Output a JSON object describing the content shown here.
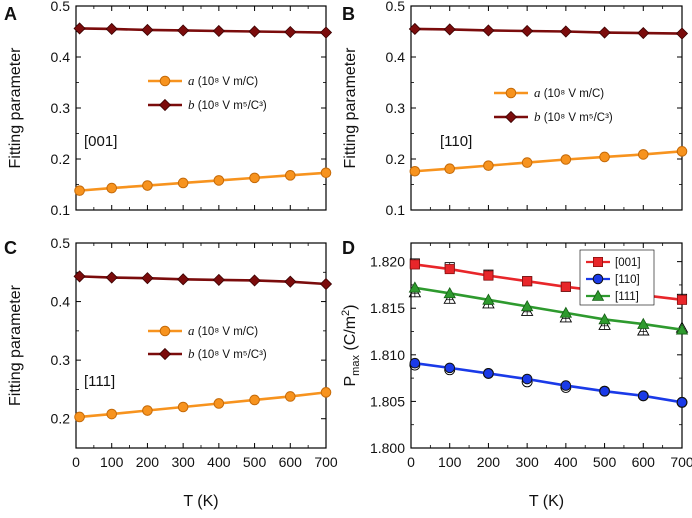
{
  "chart_data": [
    {
      "type": "line",
      "panel_label": "A",
      "ylabel": "Fitting parameter",
      "xlabel": "",
      "xlim": [
        0,
        700
      ],
      "ylim": [
        0.1,
        0.5
      ],
      "xticks": [
        0,
        100,
        200,
        300,
        400,
        500,
        600,
        700
      ],
      "yticks": [
        0.1,
        0.2,
        0.3,
        0.4,
        0.5
      ],
      "show_xticklabels": false,
      "annotation": "[001]",
      "x": [
        10,
        100,
        200,
        300,
        400,
        500,
        600,
        700
      ],
      "series": [
        {
          "name": "a",
          "units": "(10⁸ V m/C)",
          "color": "#f7931e",
          "marker": "circle",
          "values": [
            0.138,
            0.143,
            0.148,
            0.153,
            0.158,
            0.163,
            0.168,
            0.173
          ]
        },
        {
          "name": "b",
          "units": "(10⁸ V m⁵/C³)",
          "color": "#7b0c0c",
          "marker": "diamond",
          "values": [
            0.456,
            0.455,
            0.453,
            0.452,
            0.451,
            0.45,
            0.449,
            0.448
          ]
        }
      ]
    },
    {
      "type": "line",
      "panel_label": "B",
      "ylabel": "Fitting parameter",
      "xlabel": "",
      "xlim": [
        0,
        700
      ],
      "ylim": [
        0.1,
        0.5
      ],
      "xticks": [
        0,
        100,
        200,
        300,
        400,
        500,
        600,
        700
      ],
      "yticks": [
        0.1,
        0.2,
        0.3,
        0.4,
        0.5
      ],
      "show_xticklabels": false,
      "annotation": "[110]",
      "x": [
        10,
        100,
        200,
        300,
        400,
        500,
        600,
        700
      ],
      "series": [
        {
          "name": "a",
          "units": "(10⁸ V m/C)",
          "color": "#f7931e",
          "marker": "circle",
          "values": [
            0.176,
            0.181,
            0.187,
            0.193,
            0.199,
            0.204,
            0.209,
            0.215
          ]
        },
        {
          "name": "b",
          "units": "(10⁸ V m⁵/C³)",
          "color": "#7b0c0c",
          "marker": "diamond",
          "values": [
            0.455,
            0.454,
            0.452,
            0.451,
            0.45,
            0.448,
            0.447,
            0.446
          ]
        }
      ]
    },
    {
      "type": "line",
      "panel_label": "C",
      "ylabel": "Fitting parameter",
      "xlabel": "T (K)",
      "xlim": [
        0,
        700
      ],
      "ylim": [
        0.15,
        0.5
      ],
      "xticks": [
        0,
        100,
        200,
        300,
        400,
        500,
        600,
        700
      ],
      "yticks": [
        0.2,
        0.3,
        0.4,
        0.5
      ],
      "show_xticklabels": true,
      "annotation": "[111]",
      "x": [
        10,
        100,
        200,
        300,
        400,
        500,
        600,
        700
      ],
      "series": [
        {
          "name": "a",
          "units": "(10⁸ V m/C)",
          "color": "#f7931e",
          "marker": "circle",
          "values": [
            0.203,
            0.208,
            0.214,
            0.22,
            0.226,
            0.232,
            0.238,
            0.245
          ]
        },
        {
          "name": "b",
          "units": "(10⁸ V m⁵/C³)",
          "color": "#7b0c0c",
          "marker": "diamond",
          "values": [
            0.443,
            0.441,
            0.44,
            0.438,
            0.437,
            0.436,
            0.434,
            0.43
          ]
        }
      ]
    },
    {
      "type": "line",
      "panel_label": "D",
      "ylabel": "P",
      "ylabel_sub": "max",
      "ylabel_unit": " (C/m",
      "ylabel_sup": "2",
      "ylabel_close": ")",
      "xlabel": "T (K)",
      "xlim": [
        0,
        700
      ],
      "ylim": [
        1.8,
        1.822
      ],
      "xticks": [
        0,
        100,
        200,
        300,
        400,
        500,
        600,
        700
      ],
      "yticks": [
        1.8,
        1.805,
        1.81,
        1.815,
        1.82
      ],
      "ytick_labels": [
        "1.800",
        "1.805",
        "1.810",
        "1.815",
        "1.820"
      ],
      "show_xticklabels": true,
      "x": [
        10,
        100,
        200,
        300,
        400,
        500,
        600,
        700
      ],
      "series": [
        {
          "name": "[001]",
          "color": "#e8262a",
          "marker": "square",
          "values": [
            1.8197,
            1.8192,
            1.8185,
            1.8179,
            1.8173,
            1.8168,
            1.8164,
            1.8159
          ],
          "ref_values": [
            1.8198,
            1.8194,
            1.8186,
            1.8179,
            1.8173,
            1.8169,
            1.8165,
            1.816
          ]
        },
        {
          "name": "[110]",
          "color": "#1a3ae8",
          "marker": "circle",
          "values": [
            1.8091,
            1.8086,
            1.808,
            1.8074,
            1.8067,
            1.8061,
            1.8056,
            1.8049
          ],
          "ref_values": [
            1.8089,
            1.8084,
            1.808,
            1.8071,
            1.8065,
            1.8061,
            1.8056,
            1.8049
          ]
        },
        {
          "name": "[111]",
          "color": "#2e9a2e",
          "marker": "triangle",
          "values": [
            1.8172,
            1.8166,
            1.8159,
            1.8152,
            1.8145,
            1.8138,
            1.8133,
            1.8127
          ],
          "ref_values": [
            1.8167,
            1.816,
            1.8155,
            1.8147,
            1.814,
            1.8132,
            1.8126,
            1.8129
          ]
        }
      ]
    }
  ]
}
